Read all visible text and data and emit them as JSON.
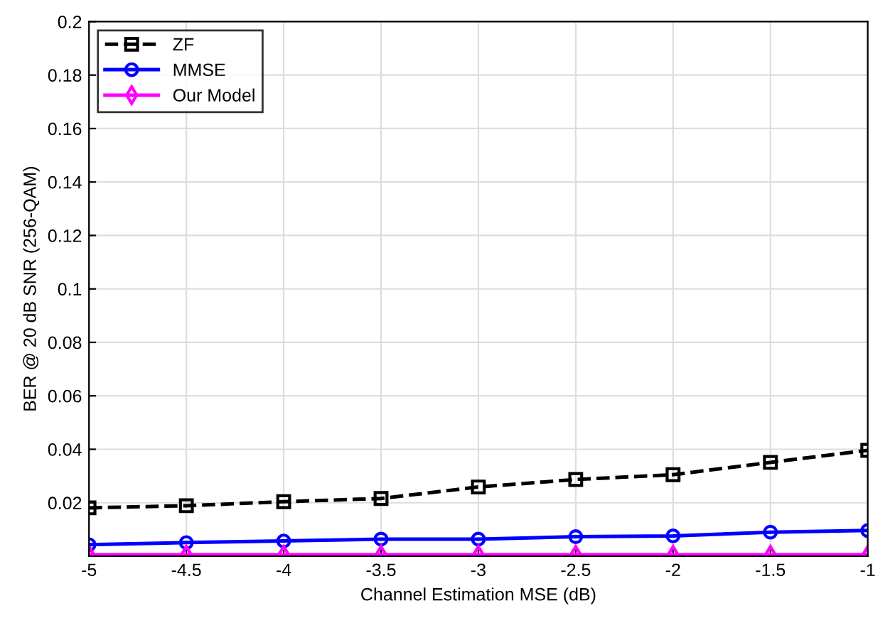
{
  "chart_data": {
    "type": "line",
    "xlabel": "Channel Estimation MSE (dB)",
    "ylabel": "BER @ 20 dB SNR (256-QAM)",
    "x": [
      -5,
      -4.5,
      -4,
      -3.5,
      -3,
      -2.5,
      -2,
      -1.5,
      -1
    ],
    "series": [
      {
        "name": "ZF",
        "color": "#000000",
        "marker": "square",
        "line_style": "dashed",
        "values": [
          0.0181,
          0.0189,
          0.0204,
          0.0216,
          0.0259,
          0.0287,
          0.0305,
          0.0351,
          0.0396
        ]
      },
      {
        "name": "MMSE",
        "color": "#0000ff",
        "marker": "circle",
        "line_style": "solid",
        "values": [
          0.0043,
          0.0051,
          0.0057,
          0.0064,
          0.0064,
          0.0073,
          0.0076,
          0.009,
          0.0096
        ]
      },
      {
        "name": "Our Model",
        "color": "#ff00ff",
        "marker": "diamond",
        "line_style": "solid",
        "values": [
          0.0005,
          0.0005,
          0.0005,
          0.0005,
          0.0005,
          0.0005,
          0.0005,
          0.0005,
          0.0005
        ]
      }
    ],
    "xlim": [
      -5,
      -1
    ],
    "xticks": [
      -5,
      -4.5,
      -4,
      -3.5,
      -3,
      -2.5,
      -2,
      -1.5,
      -1
    ],
    "ylim": [
      0,
      0.2
    ],
    "yticks": [
      {
        "value": 0,
        "label": null
      },
      0.02,
      0.04,
      0.06,
      0.08,
      0.1,
      0.12,
      0.14,
      0.16,
      0.18,
      0.2
    ],
    "grid": true,
    "legend": "top left"
  }
}
